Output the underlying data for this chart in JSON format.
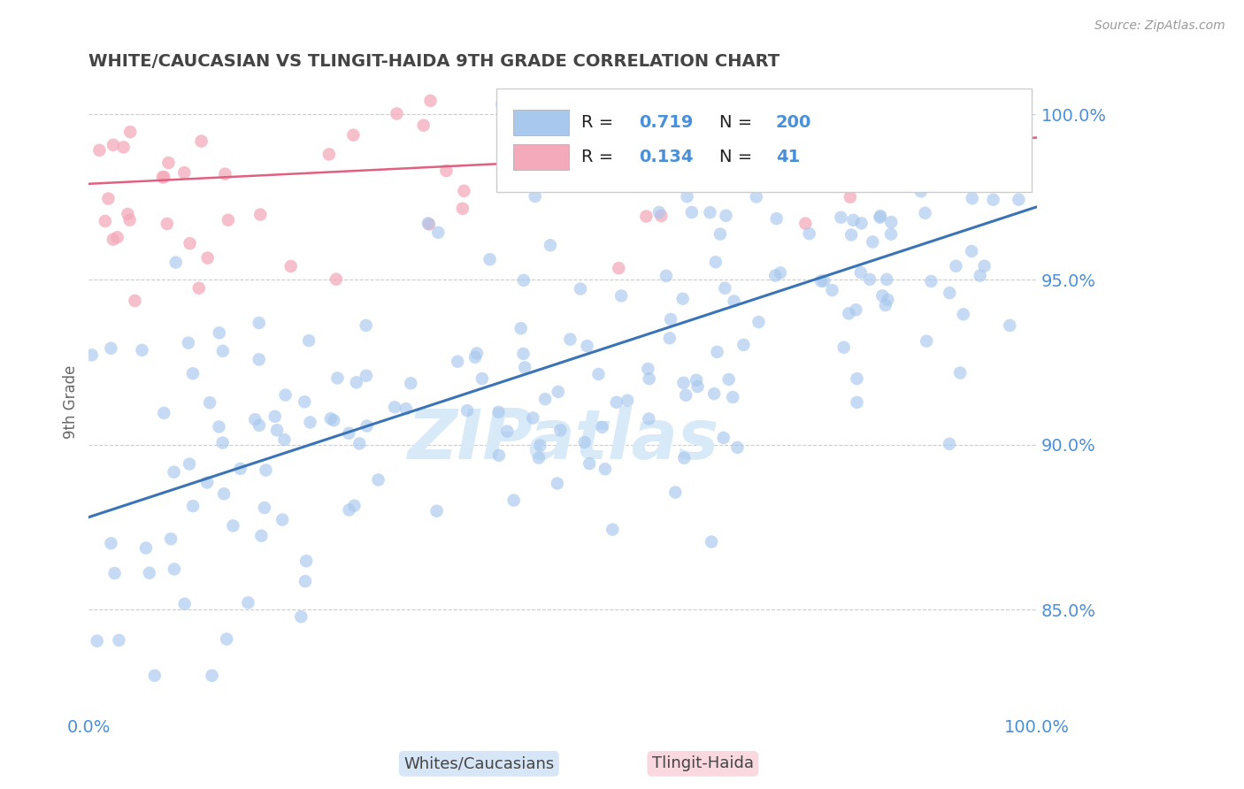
{
  "title": "WHITE/CAUCASIAN VS TLINGIT-HAIDA 9TH GRADE CORRELATION CHART",
  "source_text": "Source: ZipAtlas.com",
  "xlabel_blue": "Whites/Caucasians",
  "xlabel_pink": "Tlingit-Haida",
  "ylabel": "9th Grade",
  "R_blue": 0.719,
  "N_blue": 200,
  "R_pink": 0.134,
  "N_pink": 41,
  "xlim": [
    0.0,
    1.0
  ],
  "ylim": [
    0.818,
    1.008
  ],
  "yticks": [
    0.85,
    0.9,
    0.95,
    1.0
  ],
  "ytick_labels": [
    "85.0%",
    "90.0%",
    "95.0%",
    "100.0%"
  ],
  "blue_color": "#A8C8EE",
  "pink_color": "#F4AABB",
  "blue_line_color": "#3A74B5",
  "pink_line_color": "#E06080",
  "title_color": "#444444",
  "axis_label_color": "#4A90D9",
  "watermark_color": "#D8EAF8",
  "background_color": "#FFFFFF",
  "grid_color": "#CCCCCC",
  "seed": 42,
  "blue_line_start_y": 0.878,
  "blue_line_end_y": 0.972,
  "pink_line_start_y": 0.979,
  "pink_line_end_y": 0.993
}
